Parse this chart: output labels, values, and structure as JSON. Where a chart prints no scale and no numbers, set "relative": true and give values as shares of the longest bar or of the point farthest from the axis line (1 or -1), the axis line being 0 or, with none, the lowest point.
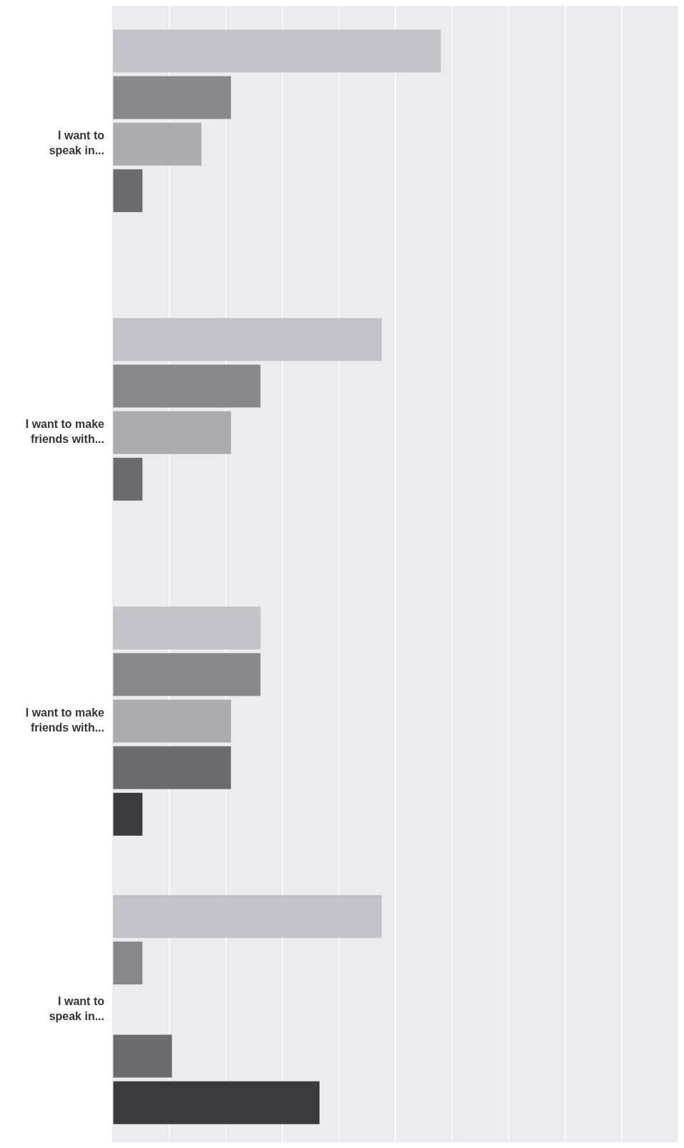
{
  "chart_data": {
    "type": "bar",
    "orientation": "horizontal",
    "relative": true,
    "grid": "x",
    "legend": false,
    "categories": [
      "I want to speak in...",
      "I want to make friends with...",
      "I want to make friends with...",
      "I want to speak in..."
    ],
    "series": [
      {
        "color": "#c2c2c8",
        "values": [
          1,
          0.82,
          0.45,
          0.82
        ]
      },
      {
        "color": "#88888c",
        "values": [
          0.36,
          0.45,
          0.45,
          0.09
        ]
      },
      {
        "color": "#acacb0",
        "values": [
          0.27,
          0.36,
          0.36,
          null
        ]
      },
      {
        "color": "#6c6c70",
        "values": [
          0.09,
          0.09,
          0.36,
          0.18
        ]
      },
      {
        "color": "#3a3a3c",
        "values": [
          null,
          null,
          0.09,
          0.63
        ]
      }
    ]
  }
}
